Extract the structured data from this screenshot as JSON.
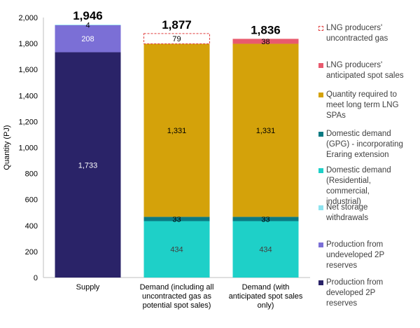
{
  "chart_data": {
    "type": "bar",
    "stacked": true,
    "title": "",
    "xlabel": "",
    "ylabel": "Quantity (PJ)",
    "ylim": [
      0,
      2000
    ],
    "ytick_step": 200,
    "categories": [
      "Supply",
      "Demand (including all uncontracted gas as potential spot sales)",
      "Demand (with anticipated spot sales only)"
    ],
    "category_lines": [
      [
        "Supply"
      ],
      [
        "Demand (including all",
        "uncontracted gas as",
        "potential spot sales)"
      ],
      [
        "Demand (with",
        "anticipated spot sales",
        "only)"
      ]
    ],
    "totals": [
      "1,946",
      "1,877",
      "1,836"
    ],
    "series": [
      {
        "name": "Production from developed 2P reserves",
        "color": "#2a2368",
        "label_color": "#ffffff",
        "values": [
          1733,
          0,
          0
        ]
      },
      {
        "name": "Production from undeveloped 2P reserves",
        "color": "#7b6fd6",
        "label_color": "#ffffff",
        "values": [
          208,
          0,
          0
        ]
      },
      {
        "name": "Net storage withdrawals",
        "color": "#8ee3f0",
        "label_color": "#000000",
        "values": [
          4,
          0,
          0
        ]
      },
      {
        "name": "Domestic demand (Residential, commercial, industrial)",
        "color": "#1ed0c8",
        "label_color": "#404040",
        "values": [
          0,
          434,
          434
        ]
      },
      {
        "name": "Domestic demand (GPG) - incorporating Eraring extension",
        "color": "#0a7a82",
        "label_color": "#000000",
        "values": [
          0,
          33,
          33
        ]
      },
      {
        "name": "Quantity required to meet long term LNG SPAs",
        "color": "#d4a20a",
        "label_color": "#000000",
        "values": [
          0,
          1331,
          1331
        ]
      },
      {
        "name": "LNG producers' anticipated spot sales",
        "color": "#e85a6e",
        "label_color": "#000000",
        "values": [
          0,
          0,
          38
        ]
      },
      {
        "name": "LNG producers' uncontracted gas",
        "color": "#ffffff",
        "border": "#e03c3c",
        "dashed": true,
        "label_color": "#000000",
        "values": [
          0,
          79,
          0
        ]
      }
    ],
    "legend_order": [
      {
        "lines": [
          "LNG producers'",
          "uncontracted gas"
        ],
        "series": 7
      },
      {
        "lines": [
          "LNG producers'",
          "anticipated spot sales"
        ],
        "series": 6
      },
      {
        "lines": [
          "Quantity required to",
          "meet long term LNG",
          "SPAs"
        ],
        "series": 5
      },
      {
        "lines": [
          "Domestic demand",
          "(GPG) - incorporating",
          "Eraring extension"
        ],
        "series": 4
      },
      {
        "lines": [
          "Domestic demand",
          "(Residential,",
          "commercial,",
          "industrial)"
        ],
        "series": 3
      },
      {
        "lines": [
          "Net storage",
          "withdrawals"
        ],
        "series": 2
      },
      {
        "lines": [
          "Production from",
          "undeveloped 2P",
          "reserves"
        ],
        "series": 1
      },
      {
        "lines": [
          "Production from",
          "developed 2P",
          "reserves"
        ],
        "series": 0
      }
    ]
  }
}
